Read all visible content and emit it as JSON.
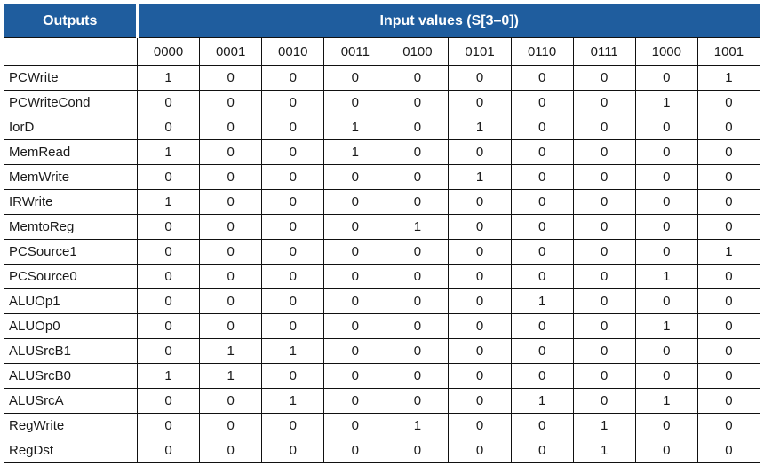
{
  "header": {
    "outputs": "Outputs",
    "inputs": "Input values (S[3–0])"
  },
  "codes": [
    "0000",
    "0001",
    "0010",
    "0011",
    "0100",
    "0101",
    "0110",
    "0111",
    "1000",
    "1001"
  ],
  "rows": [
    {
      "name": "PCWrite",
      "values": [
        "1",
        "0",
        "0",
        "0",
        "0",
        "0",
        "0",
        "0",
        "0",
        "1"
      ]
    },
    {
      "name": "PCWriteCond",
      "values": [
        "0",
        "0",
        "0",
        "0",
        "0",
        "0",
        "0",
        "0",
        "1",
        "0"
      ]
    },
    {
      "name": "IorD",
      "values": [
        "0",
        "0",
        "0",
        "1",
        "0",
        "1",
        "0",
        "0",
        "0",
        "0"
      ]
    },
    {
      "name": "MemRead",
      "values": [
        "1",
        "0",
        "0",
        "1",
        "0",
        "0",
        "0",
        "0",
        "0",
        "0"
      ]
    },
    {
      "name": "MemWrite",
      "values": [
        "0",
        "0",
        "0",
        "0",
        "0",
        "1",
        "0",
        "0",
        "0",
        "0"
      ]
    },
    {
      "name": "IRWrite",
      "values": [
        "1",
        "0",
        "0",
        "0",
        "0",
        "0",
        "0",
        "0",
        "0",
        "0"
      ]
    },
    {
      "name": "MemtoReg",
      "values": [
        "0",
        "0",
        "0",
        "0",
        "1",
        "0",
        "0",
        "0",
        "0",
        "0"
      ]
    },
    {
      "name": "PCSource1",
      "values": [
        "0",
        "0",
        "0",
        "0",
        "0",
        "0",
        "0",
        "0",
        "0",
        "1"
      ]
    },
    {
      "name": "PCSource0",
      "values": [
        "0",
        "0",
        "0",
        "0",
        "0",
        "0",
        "0",
        "0",
        "1",
        "0"
      ]
    },
    {
      "name": "ALUOp1",
      "values": [
        "0",
        "0",
        "0",
        "0",
        "0",
        "0",
        "1",
        "0",
        "0",
        "0"
      ]
    },
    {
      "name": "ALUOp0",
      "values": [
        "0",
        "0",
        "0",
        "0",
        "0",
        "0",
        "0",
        "0",
        "1",
        "0"
      ]
    },
    {
      "name": "ALUSrcB1",
      "values": [
        "0",
        "1",
        "1",
        "0",
        "0",
        "0",
        "0",
        "0",
        "0",
        "0"
      ]
    },
    {
      "name": "ALUSrcB0",
      "values": [
        "1",
        "1",
        "0",
        "0",
        "0",
        "0",
        "0",
        "0",
        "0",
        "0"
      ]
    },
    {
      "name": "ALUSrcA",
      "values": [
        "0",
        "0",
        "1",
        "0",
        "0",
        "0",
        "1",
        "0",
        "1",
        "0"
      ]
    },
    {
      "name": "RegWrite",
      "values": [
        "0",
        "0",
        "0",
        "0",
        "1",
        "0",
        "0",
        "1",
        "0",
        "0"
      ]
    },
    {
      "name": "RegDst",
      "values": [
        "0",
        "0",
        "0",
        "0",
        "0",
        "0",
        "0",
        "1",
        "0",
        "0"
      ]
    }
  ],
  "colors": {
    "header_bg": "#1f5d9e",
    "header_text": "#ffffff",
    "border": "#111111"
  }
}
